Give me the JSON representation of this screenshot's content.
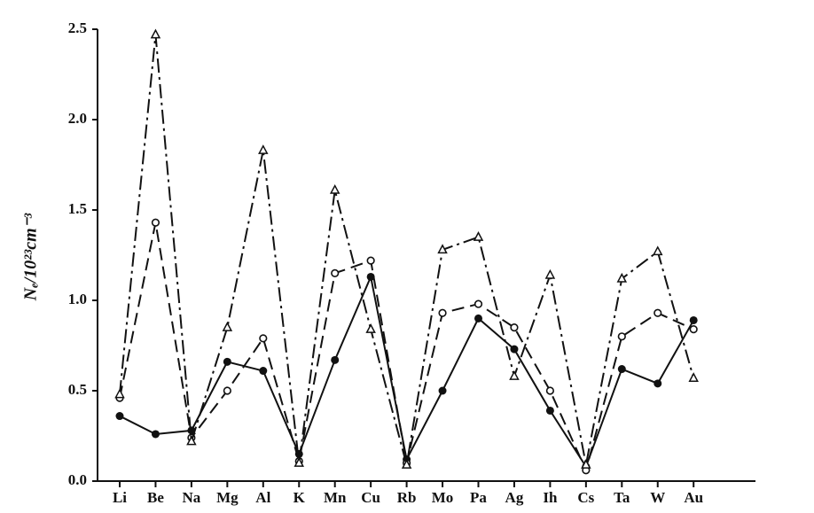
{
  "chart_data": {
    "type": "line",
    "y_label": "Nₑ/10²³cm⁻³",
    "categories": [
      "Li",
      "Be",
      "Na",
      "Mg",
      "Al",
      "K",
      "Mn",
      "Cu",
      "Rb",
      "Mo",
      "Pa",
      "Ag",
      "Ih",
      "Cs",
      "Ta",
      "W",
      "Au"
    ],
    "series": [
      {
        "color": "#111111",
        "linestyle": "solid",
        "marker": "filled-circle",
        "values": [
          0.36,
          0.26,
          0.28,
          0.66,
          0.61,
          0.15,
          0.67,
          1.13,
          0.12,
          0.5,
          0.9,
          0.73,
          0.39,
          0.08,
          0.62,
          0.54,
          0.89
        ]
      },
      {
        "color": "#111111",
        "linestyle": "dashed",
        "marker": "open-circle",
        "values": [
          0.46,
          1.43,
          0.24,
          0.5,
          0.79,
          0.11,
          1.15,
          1.22,
          0.1,
          0.93,
          0.98,
          0.85,
          0.5,
          0.06,
          0.8,
          0.93,
          0.84
        ]
      },
      {
        "color": "#111111",
        "linestyle": "dashdot",
        "marker": "triangle",
        "values": [
          0.48,
          2.47,
          0.22,
          0.85,
          1.83,
          0.1,
          1.61,
          0.84,
          0.09,
          1.28,
          1.35,
          0.58,
          1.14,
          0.09,
          1.12,
          1.27,
          0.57
        ]
      }
    ],
    "ylim": [
      0,
      2.5
    ],
    "yticks": [
      {
        "value": 0,
        "label": "0.0"
      },
      0.5,
      {
        "value": 1,
        "label": "1.0"
      },
      1.5,
      {
        "value": 2,
        "label": "2.0"
      },
      2.5
    ],
    "grid": false
  }
}
